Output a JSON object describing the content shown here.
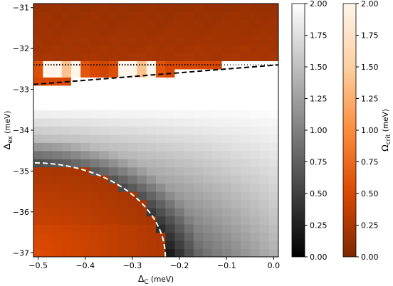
{
  "chart_data": {
    "type": "heatmap",
    "x_axis": {
      "range": [
        -0.51,
        0.01
      ],
      "ticks": [
        -0.5,
        -0.4,
        -0.3,
        -0.2,
        -0.1,
        0.0
      ],
      "tick_labels": [
        "−0.5",
        "−0.4",
        "−0.3",
        "−0.2",
        "−0.1",
        "0.0"
      ],
      "label_main": "Δ",
      "label_sub": "C",
      "label_unit": " (meV)"
    },
    "y_axis": {
      "range": [
        -37.1,
        -30.9
      ],
      "ticks": [
        -31,
        -32,
        -33,
        -34,
        -35,
        -36,
        -37
      ],
      "tick_labels": [
        "−31",
        "−32",
        "−33",
        "−34",
        "−35",
        "−36",
        "−37"
      ],
      "label_main": "Δ",
      "label_sub": "ex",
      "label_unit": " (meV)"
    },
    "colorbars": [
      {
        "colormap": "gray",
        "range": [
          0.0,
          2.0
        ],
        "tick_labels": [
          "0.00",
          "0.25",
          "0.50",
          "0.75",
          "1.00",
          "1.25",
          "1.50",
          "1.75",
          "2.00"
        ],
        "label": ""
      },
      {
        "colormap": "orange",
        "range": [
          0.0,
          2.0
        ],
        "tick_labels": [
          "0.00",
          "0.25",
          "0.50",
          "0.75",
          "1.00",
          "1.25",
          "1.50",
          "1.75",
          "2.00"
        ],
        "label_main": "Ω",
        "label_sub": "crit",
        "label_unit": " (meV)"
      }
    ],
    "regions": [
      {
        "name": "upper",
        "colormap": "orange",
        "description": "Δ_ex above ≈ −32.4 meV, values ≈ 0.1–0.25"
      },
      {
        "name": "middle",
        "colormap": "gray",
        "description": "between upper dashed line and lower-left dashed arc"
      },
      {
        "name": "lower-left",
        "colormap": "orange",
        "description": "inside lower-left arc, values ≈ 0.2–0.5"
      }
    ],
    "boundaries": [
      {
        "style": "dotted",
        "color": "#000000",
        "x": [
          -0.51,
          0.01
        ],
        "y": [
          -32.4,
          -32.4
        ]
      },
      {
        "style": "dotted",
        "color": "#ffffff",
        "x": [
          -0.11,
          0.01
        ],
        "y": [
          -32.4,
          -32.4
        ]
      },
      {
        "style": "dashed",
        "color": "#000000",
        "x": [
          -0.51,
          0.01
        ],
        "y": [
          -32.88,
          -32.4
        ]
      },
      {
        "style": "dashed",
        "color": "#ffffff",
        "center": [
          -0.51,
          -37.1
        ],
        "radii": [
          0.28,
          2.3
        ]
      }
    ],
    "colors": {
      "orange_dark": "#7f2704",
      "orange_mid": "#d94801",
      "orange_light": "#fd8d3c",
      "orange_pale": "#fdd0a2",
      "orange_white": "#fff5eb"
    }
  }
}
